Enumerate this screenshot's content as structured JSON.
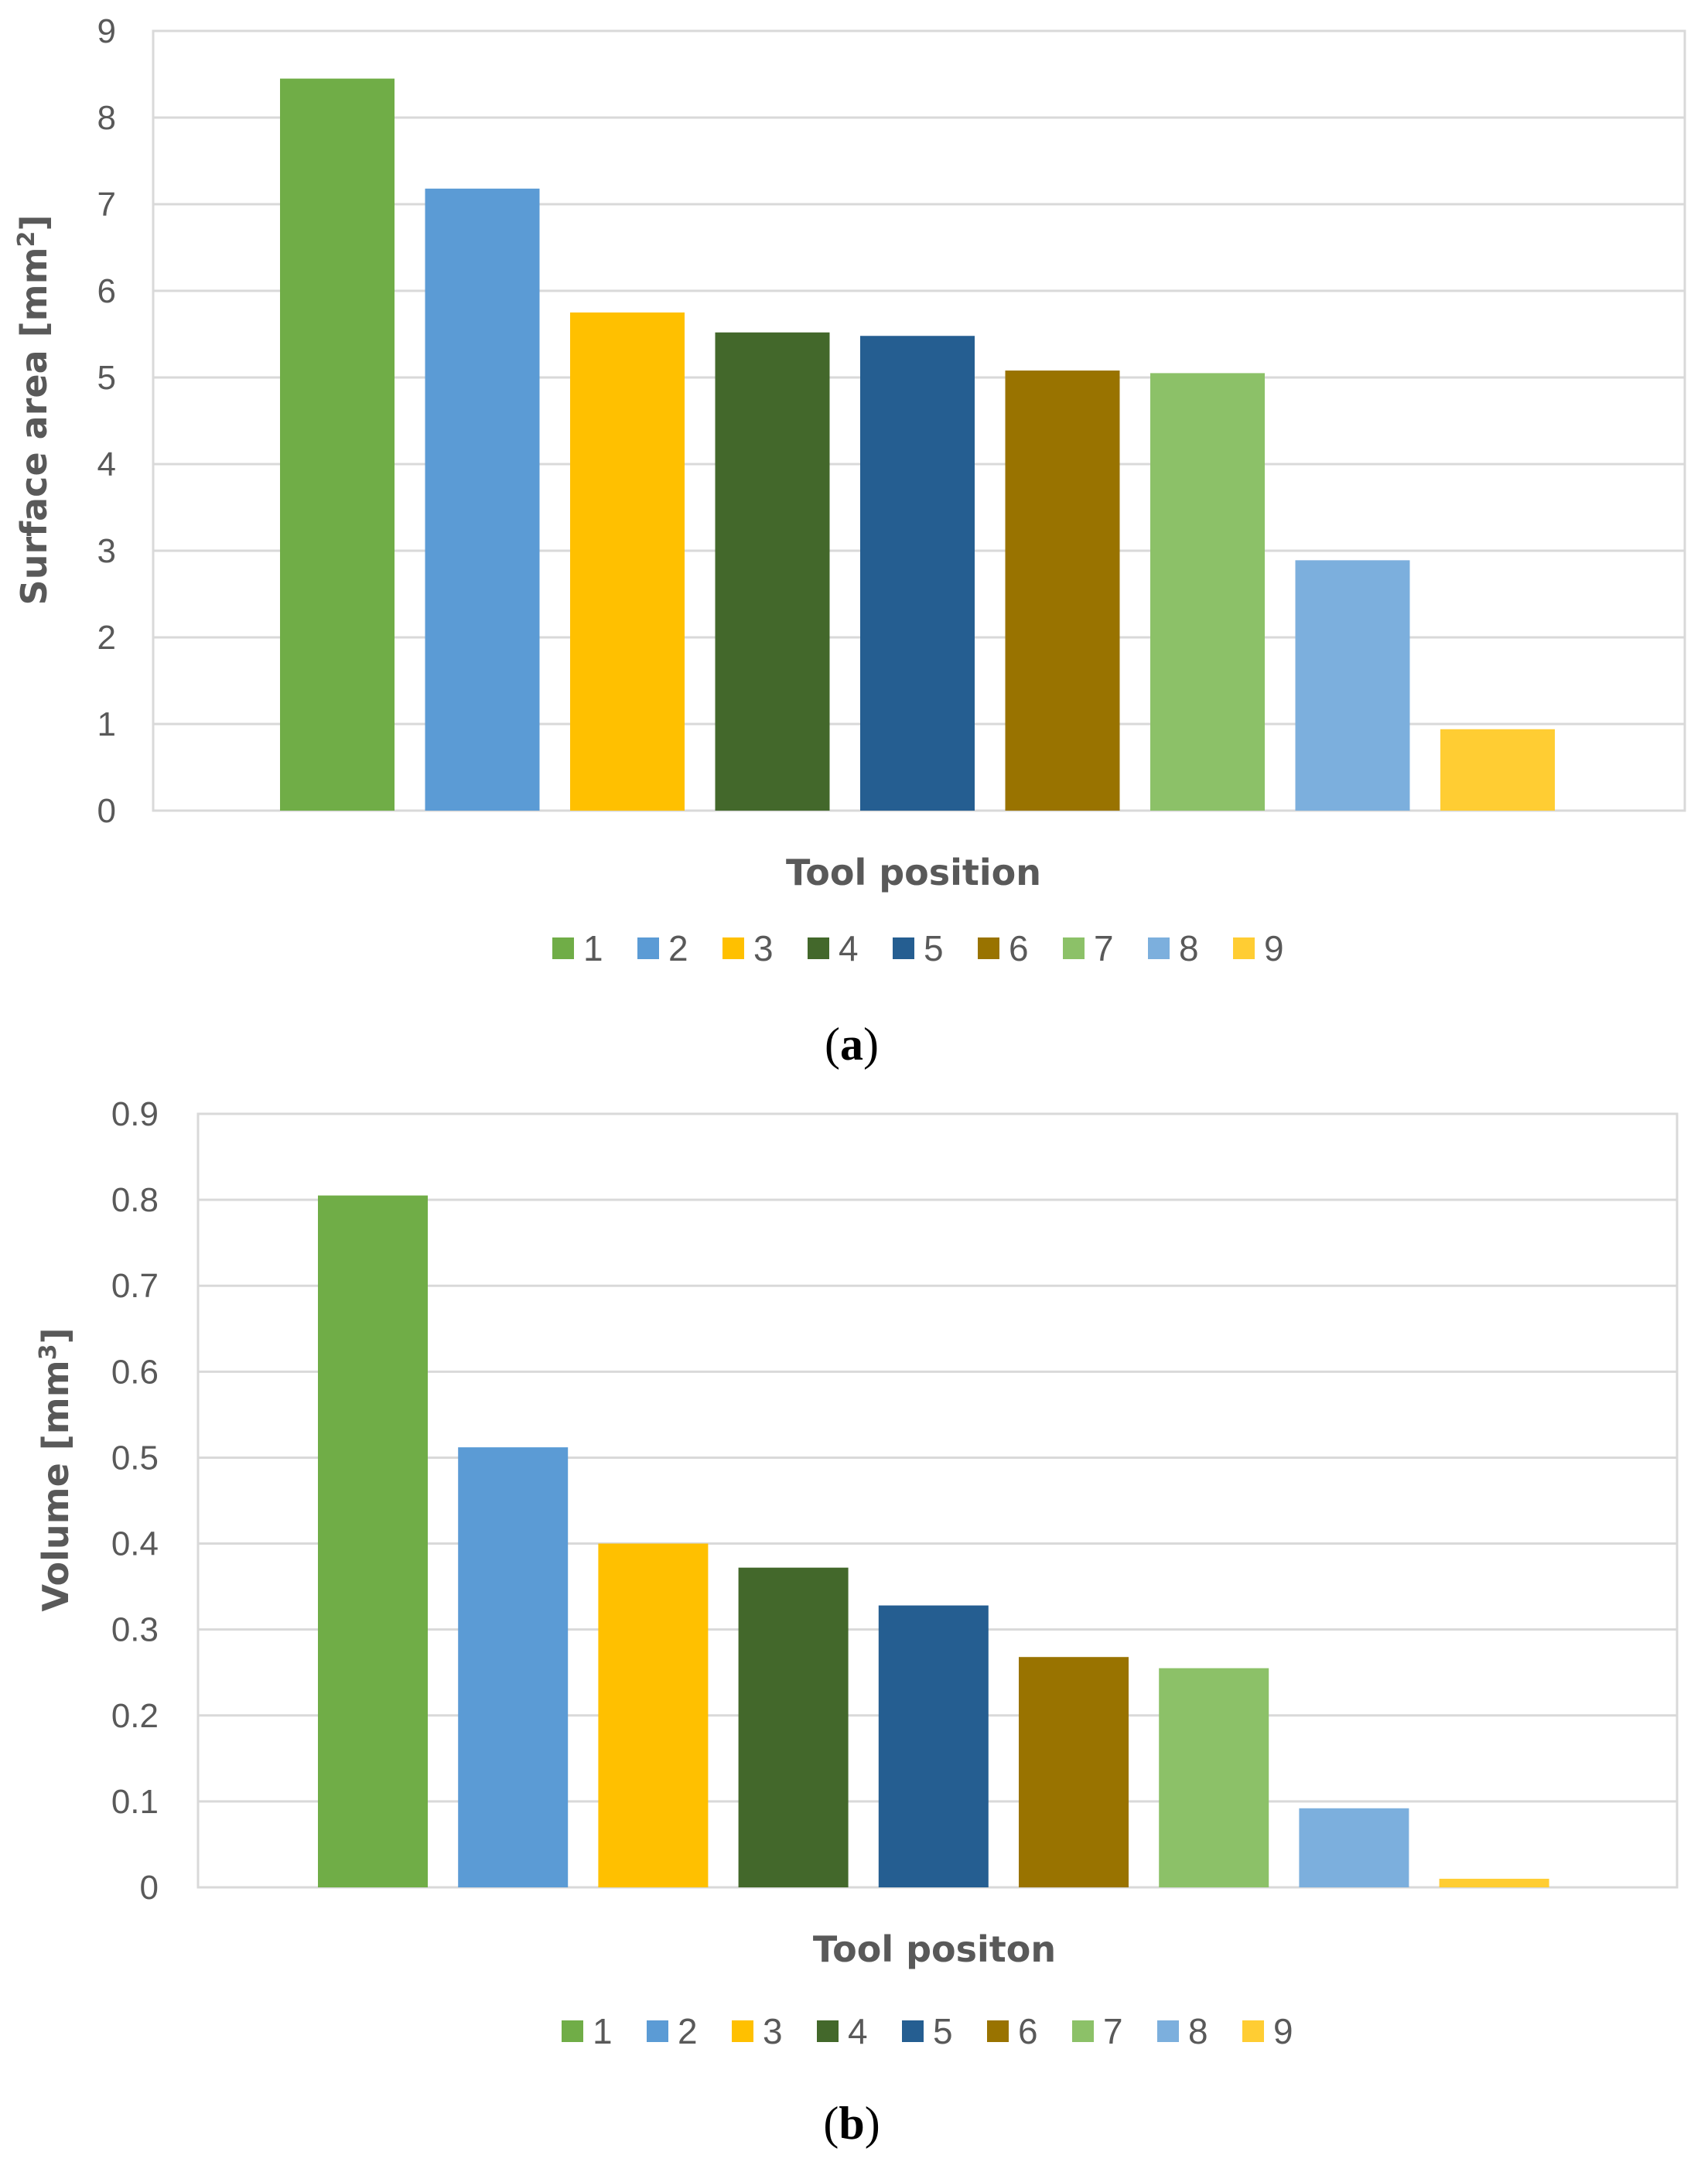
{
  "colors": [
    "#70AD47",
    "#5B9BD5",
    "#FFC000",
    "#43682B",
    "#255E91",
    "#997300",
    "#8CC168",
    "#7CAFDD",
    "#FFCD33"
  ],
  "chart_data": [
    {
      "type": "bar",
      "panel": "a",
      "caption_prefix": "(",
      "caption_letter": "a",
      "caption_suffix": ")",
      "categories": [
        "1",
        "2",
        "3",
        "4",
        "5",
        "6",
        "7",
        "8",
        "9"
      ],
      "values": [
        8.45,
        7.18,
        5.75,
        5.52,
        5.48,
        5.08,
        5.05,
        2.89,
        0.94
      ],
      "xlabel": "Tool position",
      "ylabel_main": "Surface area [mm",
      "ylabel_sup": "2",
      "ylabel_end": "]",
      "ylim": [
        0,
        9
      ],
      "yticks": [
        "0",
        "1",
        "2",
        "3",
        "4",
        "5",
        "6",
        "7",
        "8",
        "9"
      ],
      "grid": true,
      "legend": "bottom"
    },
    {
      "type": "bar",
      "panel": "b",
      "caption_prefix": "(",
      "caption_letter": "b",
      "caption_suffix": ")",
      "categories": [
        "1",
        "2",
        "3",
        "4",
        "5",
        "6",
        "7",
        "8",
        "9"
      ],
      "values": [
        0.805,
        0.512,
        0.4,
        0.372,
        0.328,
        0.268,
        0.255,
        0.092,
        0.01
      ],
      "xlabel": "Tool positon",
      "ylabel_main": "Volume [mm",
      "ylabel_sup": "3",
      "ylabel_end": "]",
      "ylim": [
        0,
        0.9
      ],
      "yticks": [
        "0",
        "0.1",
        "0.2",
        "0.3",
        "0.4",
        "0.5",
        "0.6",
        "0.7",
        "0.8",
        "0.9"
      ],
      "grid": true,
      "legend": "bottom"
    }
  ]
}
